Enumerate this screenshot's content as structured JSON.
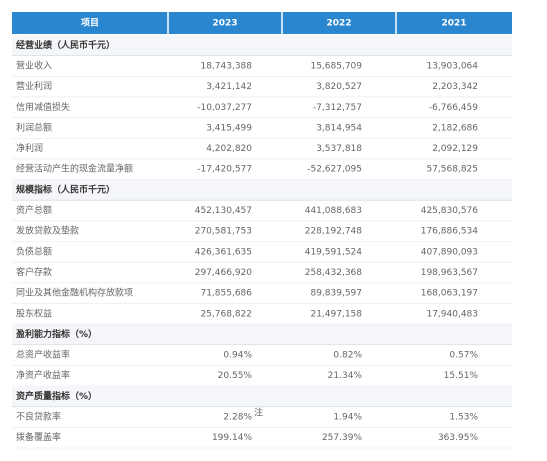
{
  "table": {
    "header": [
      "项目",
      "2023",
      "2022",
      "2021"
    ],
    "sections": [
      {
        "title": "经营业绩（人民币千元）",
        "rows": [
          [
            "营业收入",
            "18,743,388",
            "15,685,709",
            "13,903,064"
          ],
          [
            "营业利润",
            "3,421,142",
            "3,820,527",
            "2,203,342"
          ],
          [
            "信用减值损失",
            "-10,037,277",
            "-7,312,757",
            "-6,766,459"
          ],
          [
            "利润总额",
            "3,415,499",
            "3,814,954",
            "2,182,686"
          ],
          [
            "净利润",
            "4,202,820",
            "3,537,818",
            "2,092,129"
          ],
          [
            "经营活动产生的现金流量净额",
            "-17,420,577",
            "-52,627,095",
            "57,568,825"
          ]
        ]
      },
      {
        "title": "规模指标（人民币千元）",
        "rows": [
          [
            "资产总额",
            "452,130,457",
            "441,088,683",
            "425,830,576"
          ],
          [
            "发放贷款及垫款",
            "270,581,753",
            "228,192,748",
            "176,886,534"
          ],
          [
            "负债总额",
            "426,361,635",
            "419,591,524",
            "407,890,093"
          ],
          [
            "客户存款",
            "297,466,920",
            "258,432,368",
            "198,963,567"
          ],
          [
            "同业及其他金融机构存放款项",
            "71,855,686",
            "89,839,597",
            "168,063,197"
          ],
          [
            "股东权益",
            "25,768,822",
            "21,497,158",
            "17,940,483"
          ]
        ]
      },
      {
        "title": "盈利能力指标（%）",
        "rows": [
          [
            "总资产收益率",
            "0.94%",
            "0.82%",
            "0.57%"
          ],
          [
            "净资产收益率",
            "20.55%",
            "21.34%",
            "15.51%"
          ]
        ]
      },
      {
        "title": "资产质量指标（%）",
        "rows": [
          [
            "不良贷款率",
            "2.28%",
            "1.94%",
            "1.53%"
          ],
          [
            "拨备覆盖率",
            "199.14%",
            "257.39%",
            "363.95%"
          ]
        ]
      }
    ],
    "note": "注"
  }
}
